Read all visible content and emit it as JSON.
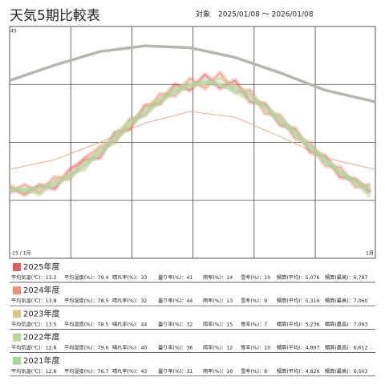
{
  "chart_data": {
    "type": "line",
    "title": "天気5期比較表",
    "period_label": "対象",
    "period": "2025/01/08 〜 2026/01/08",
    "x": [
      0,
      15,
      30,
      45,
      60,
      75,
      90,
      105,
      120,
      135,
      150,
      165,
      180,
      195,
      210,
      225,
      240,
      255,
      270,
      285,
      300,
      315,
      330,
      345,
      360
    ],
    "xlim": [
      0,
      365
    ],
    "ylim": [
      -15,
      45
    ],
    "yticks": [
      45,
      {
        "value": -15,
        "label": "-15 / 1月"
      }
    ],
    "xticks": [
      {
        "value": 365,
        "label": "1月"
      }
    ],
    "ygrid": [
      30,
      15,
      0
    ],
    "xgrid": [
      61,
      122,
      183,
      244,
      305
    ],
    "series": [
      {
        "name": "2025年度",
        "color": "#e06060",
        "values": [
          3.5,
          1.5,
          4.0,
          3.0,
          8.0,
          10.5,
          11.0,
          17.5,
          18.5,
          24.5,
          25.0,
          30.0,
          28.5,
          32.5,
          29.0,
          31.0,
          25.5,
          25.0,
          19.5,
          18.5,
          12.5,
          11.5,
          6.0,
          5.5,
          2.0
        ]
      },
      {
        "name": "2024年度",
        "color": "#e8907a",
        "values": [
          2.0,
          4.0,
          2.0,
          6.0,
          5.5,
          11.0,
          13.5,
          15.0,
          21.0,
          22.0,
          27.5,
          27.0,
          31.5,
          29.0,
          33.0,
          28.0,
          28.5,
          22.5,
          22.0,
          16.0,
          15.0,
          9.0,
          8.5,
          3.5,
          4.0
        ]
      },
      {
        "name": "2023年度",
        "color": "#d8c890",
        "values": [
          4.0,
          2.0,
          3.0,
          5.0,
          7.0,
          8.0,
          14.0,
          16.0,
          19.0,
          24.0,
          26.5,
          29.0,
          30.0,
          30.0,
          31.5,
          29.5,
          27.5,
          24.0,
          21.5,
          17.5,
          14.0,
          11.0,
          7.0,
          5.0,
          3.0
        ]
      },
      {
        "name": "2022年度",
        "color": "#b8d8a0",
        "values": [
          2.5,
          3.0,
          1.5,
          4.5,
          6.0,
          9.5,
          12.0,
          17.0,
          20.5,
          22.0,
          25.5,
          28.0,
          29.5,
          31.0,
          30.0,
          28.0,
          26.0,
          24.5,
          20.0,
          18.0,
          13.0,
          10.0,
          7.5,
          4.5,
          1.0
        ]
      },
      {
        "name": "2021年度",
        "color": "#a8d8a0",
        "values": [
          3.0,
          2.5,
          3.5,
          4.0,
          6.5,
          9.0,
          12.5,
          15.5,
          20.0,
          23.0,
          26.0,
          28.5,
          30.0,
          30.5,
          30.0,
          29.0,
          27.0,
          24.0,
          21.0,
          17.0,
          14.0,
          10.5,
          7.0,
          5.0,
          2.5
        ]
      }
    ],
    "reference_lines": [
      {
        "color": "#b8b4b0",
        "width": 3.5,
        "x": [
          0,
          45,
          90,
          135,
          180,
          225,
          270,
          315,
          365
        ],
        "values": [
          31,
          35,
          38.5,
          40,
          39.5,
          37,
          33,
          28.5,
          25.5
        ]
      },
      {
        "color": "#f0a890",
        "width": 1,
        "x": [
          0,
          45,
          90,
          135,
          180,
          225,
          270,
          315,
          365
        ],
        "values": [
          8,
          10.5,
          15,
          20,
          23,
          21.5,
          16.5,
          11,
          8
        ]
      }
    ]
  },
  "summary": {
    "stat_labels": [
      "平均気温(℃)：",
      "平均湿度(%)：",
      "晴れ率(%)：",
      "曇り率(%)：",
      "雨率(%)：",
      "雪率(%)：",
      "積算(平均)：",
      "積算(最高)："
    ],
    "rows": [
      [
        "13.2",
        "79.4",
        "33",
        "41",
        "14",
        "10",
        "5,076",
        "6,787"
      ],
      [
        "13.8",
        "78.5",
        "32",
        "44",
        "13",
        "9",
        "5,316",
        "7,060"
      ],
      [
        "13.5",
        "78.5",
        "44",
        "32",
        "15",
        "7",
        "5,236",
        "7,093"
      ],
      [
        "12.8",
        "79.6",
        "40",
        "36",
        "12",
        "10",
        "4,897",
        "6,612"
      ],
      [
        "12.6",
        "76.7",
        "43",
        "31",
        "16",
        "8",
        "4,826",
        "6,503"
      ]
    ]
  }
}
